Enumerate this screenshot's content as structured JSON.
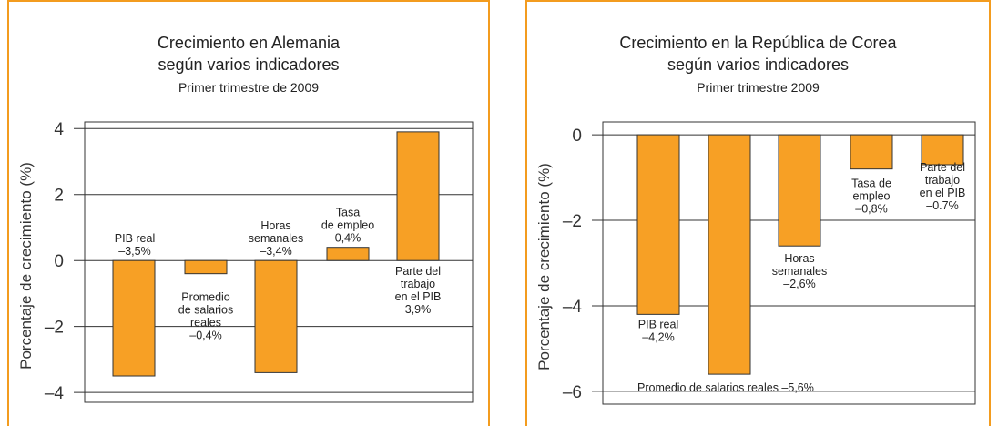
{
  "chart_data": [
    {
      "type": "bar",
      "title_line1": "Crecimiento en Alemania",
      "title_line2": "según varios indicadores",
      "subtitle": "Primer trimestre de 2009",
      "ylabel": "Porcentaje de crecimiento (%)",
      "ylim": [
        -4.3,
        4.2
      ],
      "yticks": [
        "4",
        "2",
        "0",
        "–2",
        "–4"
      ],
      "ytick_values": [
        4,
        2,
        0,
        -2,
        -4
      ],
      "grid": true,
      "color": "#f7a025",
      "bars": [
        {
          "value": -3.5,
          "label": [
            "PIB real",
            "–3,5%"
          ]
        },
        {
          "value": -0.4,
          "label": [
            "Promedio",
            "de salarios",
            "reales",
            "–0,4%"
          ]
        },
        {
          "value": -3.4,
          "label": [
            "Horas",
            "semanales",
            "–3,4%"
          ]
        },
        {
          "value": 0.4,
          "label": [
            "Tasa",
            "de empleo",
            "0,4%"
          ]
        },
        {
          "value": 3.9,
          "label": [
            "Parte del",
            "trabajo",
            "en el PIB",
            "3,9%"
          ]
        }
      ]
    },
    {
      "type": "bar",
      "title_line1": "Crecimiento en la República de Corea",
      "title_line2": "según varios indicadores",
      "subtitle": "Primer trimestre 2009",
      "ylabel": "Porcentaje de crecimiento (%)",
      "ylim": [
        -6.3,
        0.3
      ],
      "yticks": [
        "0",
        "–2",
        "–4",
        "–6"
      ],
      "ytick_values": [
        0,
        -2,
        -4,
        -6
      ],
      "grid": true,
      "color": "#f7a025",
      "bars": [
        {
          "value": -4.2,
          "label": [
            "PIB real",
            "–4,2%"
          ]
        },
        {
          "value": -5.6,
          "label": [
            "Promedio de salarios reales –5,6%"
          ]
        },
        {
          "value": -2.6,
          "label": [
            "Horas",
            "semanales",
            "–2,6%"
          ]
        },
        {
          "value": -0.8,
          "label": [
            "Tasa de",
            "empleo",
            "–0,8%"
          ]
        },
        {
          "value": -0.7,
          "label": [
            "Parte del",
            "trabajo",
            "en el PIB",
            "–0.7%"
          ]
        }
      ]
    }
  ]
}
